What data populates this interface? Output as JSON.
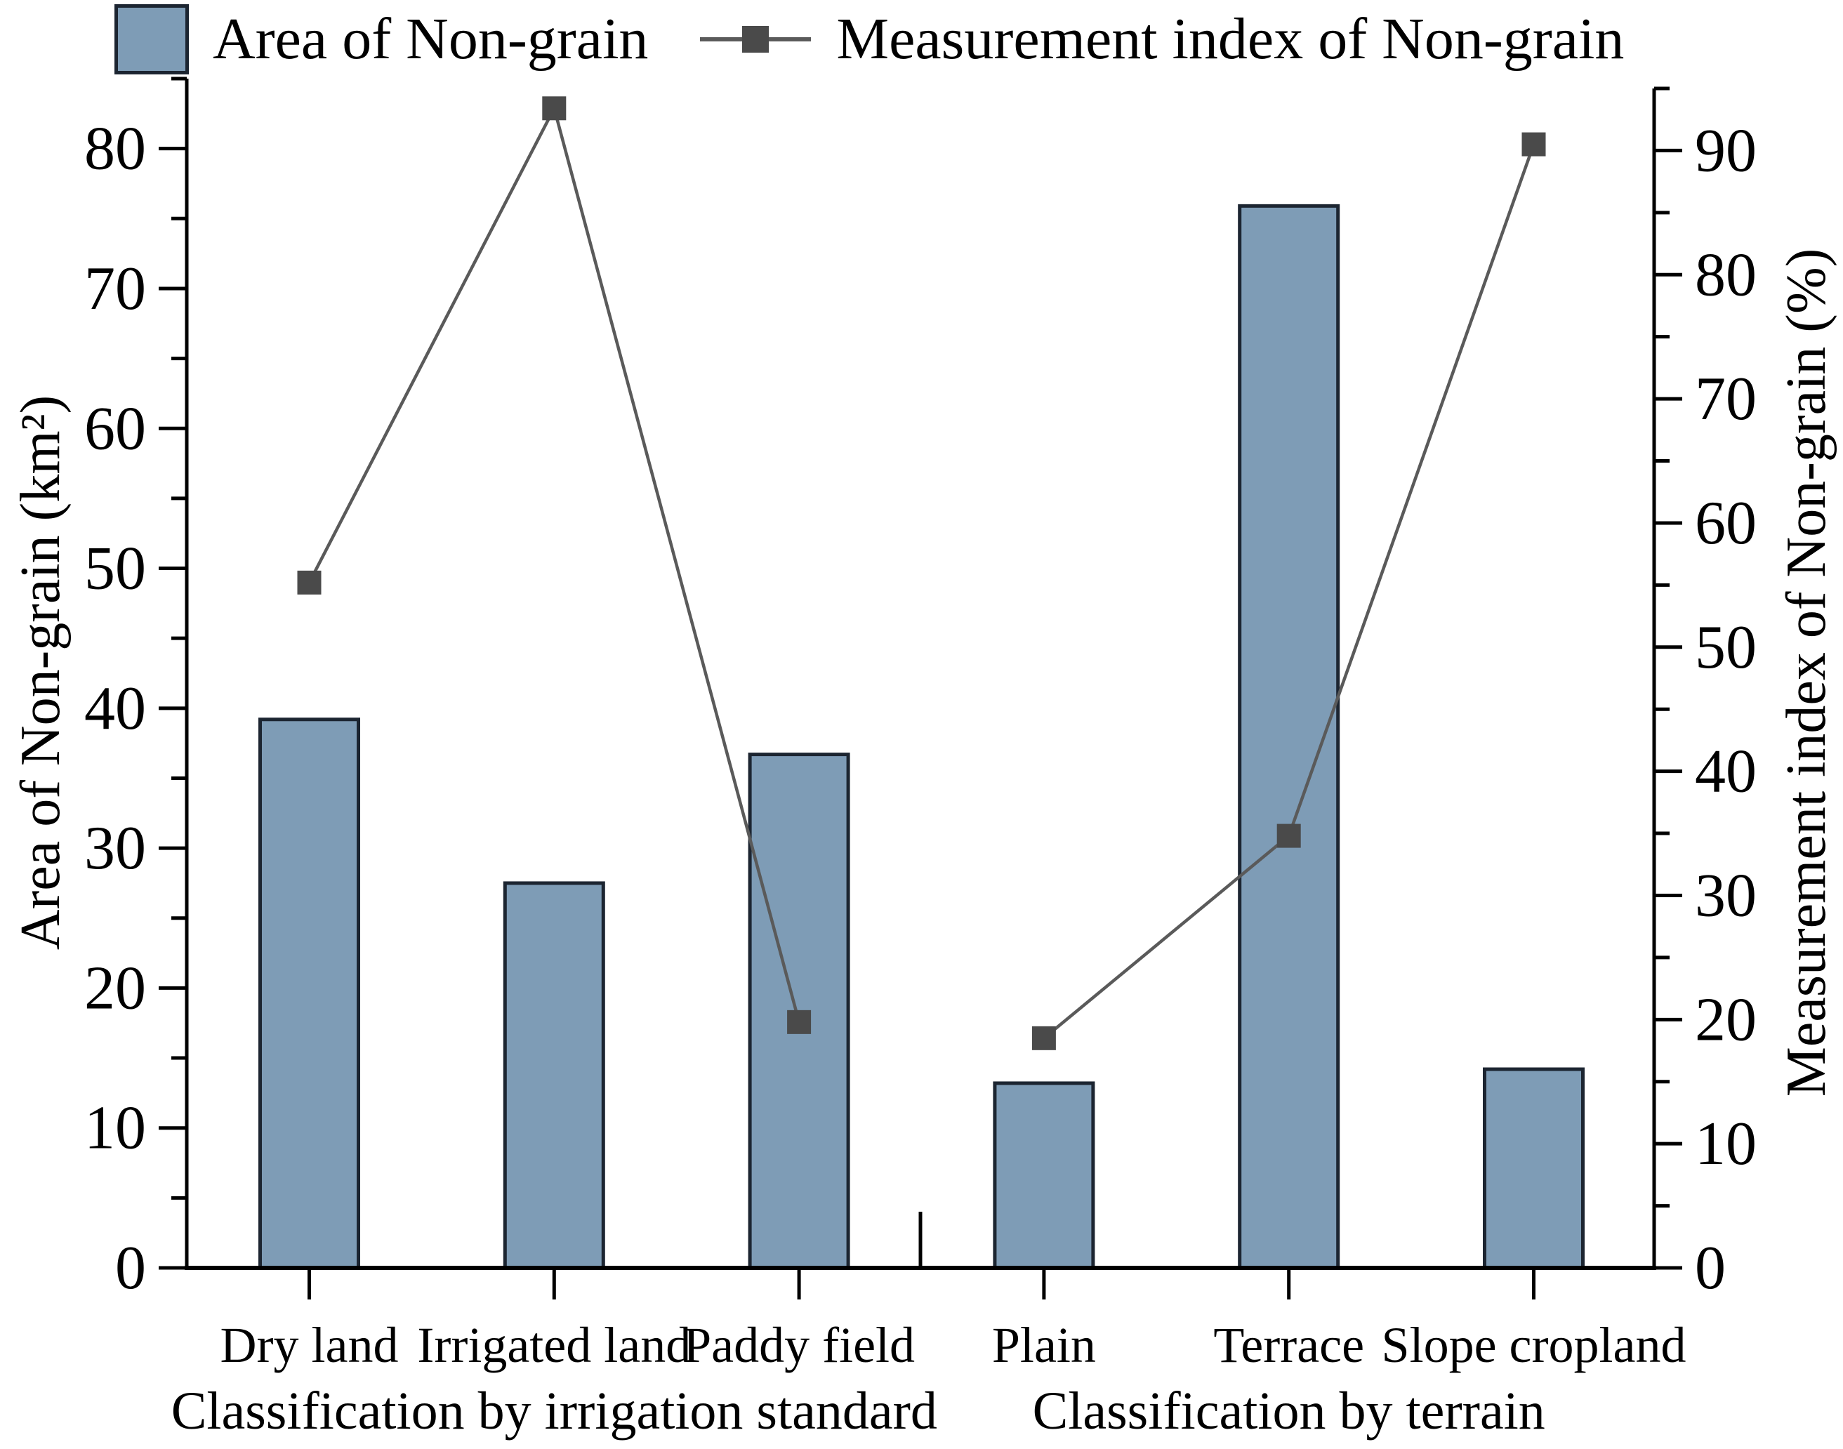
{
  "chart_data": {
    "type": "bar+line dual-axis",
    "categories": [
      "Dry land",
      "Irrigated land",
      "Paddy field",
      "Plain",
      "Terrace",
      "Slope cropland"
    ],
    "groups": [
      {
        "label": "Classification by irrigation standard",
        "categories": [
          0,
          1,
          2
        ]
      },
      {
        "label": "Classification by terrain",
        "categories": [
          3,
          4,
          5
        ]
      }
    ],
    "series": [
      {
        "name": "Area of Non-grain",
        "type": "bar",
        "axis": "left",
        "values": [
          39.2,
          27.5,
          36.7,
          13.2,
          75.9,
          14.2
        ]
      },
      {
        "name": "Measurement index of Non-grain",
        "type": "line",
        "axis": "right",
        "values": [
          55.2,
          93.4,
          19.8,
          18.5,
          34.8,
          90.5
        ]
      }
    ],
    "left_axis": {
      "label": "Area of Non-grain (km²)",
      "ticks": [
        0,
        10,
        20,
        30,
        40,
        50,
        60,
        70,
        80
      ],
      "range": [
        0,
        85
      ],
      "minor_step": 5
    },
    "right_axis": {
      "label": "Measurement index of Non-grain (%)",
      "ticks": [
        0,
        10,
        20,
        30,
        40,
        50,
        60,
        70,
        80,
        90
      ],
      "range": [
        0,
        95
      ],
      "minor_step": 5
    },
    "colors": {
      "bar_fill": "#7e9cb6",
      "bar_edge": "#1c2531",
      "line": "#5a5a5a",
      "marker": "#4a4a4a",
      "text": "#000000"
    },
    "legend_position": "top",
    "grid": "off",
    "line_breaks_between_groups": true
  }
}
